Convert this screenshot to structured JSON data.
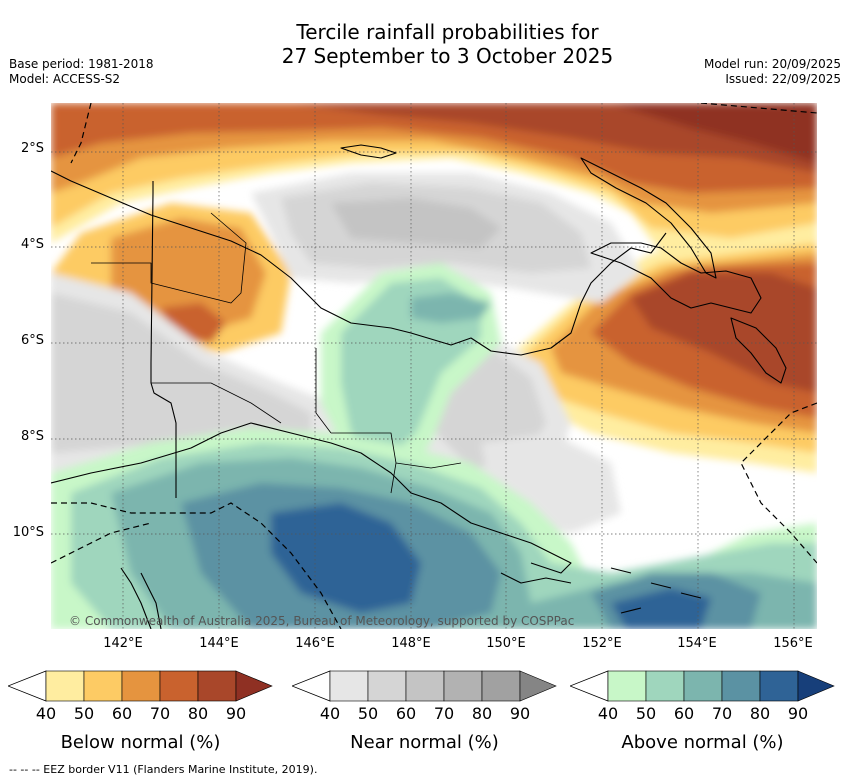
{
  "header": {
    "title_line1": "Tercile rainfall probabilities for",
    "title_line2": "27 September to 3 October 2025",
    "base_period": "Base period: 1981-2018",
    "model": "Model: ACCESS-S2",
    "model_run": "Model run: 20/09/2025",
    "issued": "Issued: 22/09/2025"
  },
  "map": {
    "lat_labels": [
      "2°S",
      "4°S",
      "6°S",
      "8°S",
      "10°S"
    ],
    "lon_labels": [
      "142°E",
      "144°E",
      "146°E",
      "148°E",
      "150°E",
      "152°E",
      "154°E",
      "156°E"
    ],
    "copyright": "© Commonwealth of Australia 2025, Bureau of Meteorology, supported by COSPPac",
    "extent": {
      "lon_min": 140.0,
      "lon_max": 156.5,
      "lat_min": -12.0,
      "lat_max": -1.0
    }
  },
  "legend": {
    "below": {
      "title": "Below normal (%)",
      "ticks": [
        "40",
        "50",
        "60",
        "70",
        "80",
        "90"
      ],
      "colors": [
        "#ffeda0",
        "#fdcb64",
        "#e5943f",
        "#c9622e",
        "#a9472a",
        "#8f3023"
      ]
    },
    "near": {
      "title": "Near normal (%)",
      "ticks": [
        "40",
        "50",
        "60",
        "70",
        "80",
        "90"
      ],
      "colors": [
        "#e6e6e6",
        "#d5d5d5",
        "#c4c4c4",
        "#b2b2b2",
        "#a1a1a1",
        "#858585"
      ]
    },
    "above": {
      "title": "Above normal (%)",
      "ticks": [
        "40",
        "50",
        "60",
        "70",
        "80",
        "90"
      ],
      "colors": [
        "#c8f7c8",
        "#9fd6bd",
        "#7cb5ae",
        "#5b92a3",
        "#2f6396",
        "#173f7a"
      ]
    }
  },
  "footnote": "--  --  -- EEZ border V11 (Flanders Marine Institute, 2019)."
}
